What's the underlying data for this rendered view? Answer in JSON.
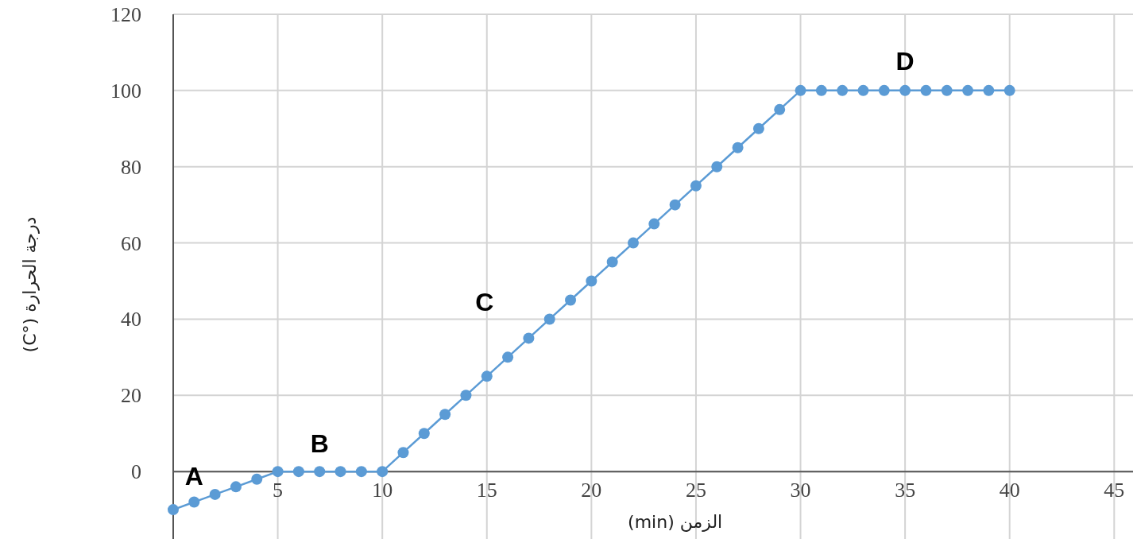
{
  "chart_data": {
    "type": "line",
    "xlabel": "الزمن (min)",
    "ylabel": "درجة الحرارة (°C)",
    "x": [
      0,
      1,
      2,
      3,
      4,
      5,
      6,
      7,
      8,
      9,
      10,
      11,
      12,
      13,
      14,
      15,
      16,
      17,
      18,
      19,
      20,
      21,
      22,
      23,
      24,
      25,
      26,
      27,
      28,
      29,
      30,
      31,
      32,
      33,
      34,
      35,
      36,
      37,
      38,
      39,
      40
    ],
    "series": [
      {
        "color": "#5b9bd5",
        "values": [
          -10,
          -8,
          -6,
          -4,
          -2,
          0,
          0,
          0,
          0,
          0,
          0,
          5,
          10,
          15,
          20,
          25,
          30,
          35,
          40,
          45,
          50,
          55,
          60,
          65,
          70,
          75,
          80,
          85,
          90,
          95,
          100,
          100,
          100,
          100,
          100,
          100,
          100,
          100,
          100,
          100,
          100
        ]
      }
    ],
    "xlim": [
      0,
      45.9
    ],
    "ylim": [
      -17.7,
      120
    ],
    "xticks": [
      5,
      10,
      15,
      20,
      25,
      30,
      35,
      40,
      45
    ],
    "yticks": [
      0,
      20,
      40,
      60,
      80,
      100,
      120
    ],
    "grid": true,
    "marker": "circle",
    "line_style": "solid",
    "annotations": [
      {
        "text": "A",
        "x": 1,
        "y": -8
      },
      {
        "text": "B",
        "x": 7,
        "y": 0
      },
      {
        "text": "C",
        "x": 18,
        "y": 40
      },
      {
        "text": "D",
        "x": 35,
        "y": 100
      }
    ]
  }
}
